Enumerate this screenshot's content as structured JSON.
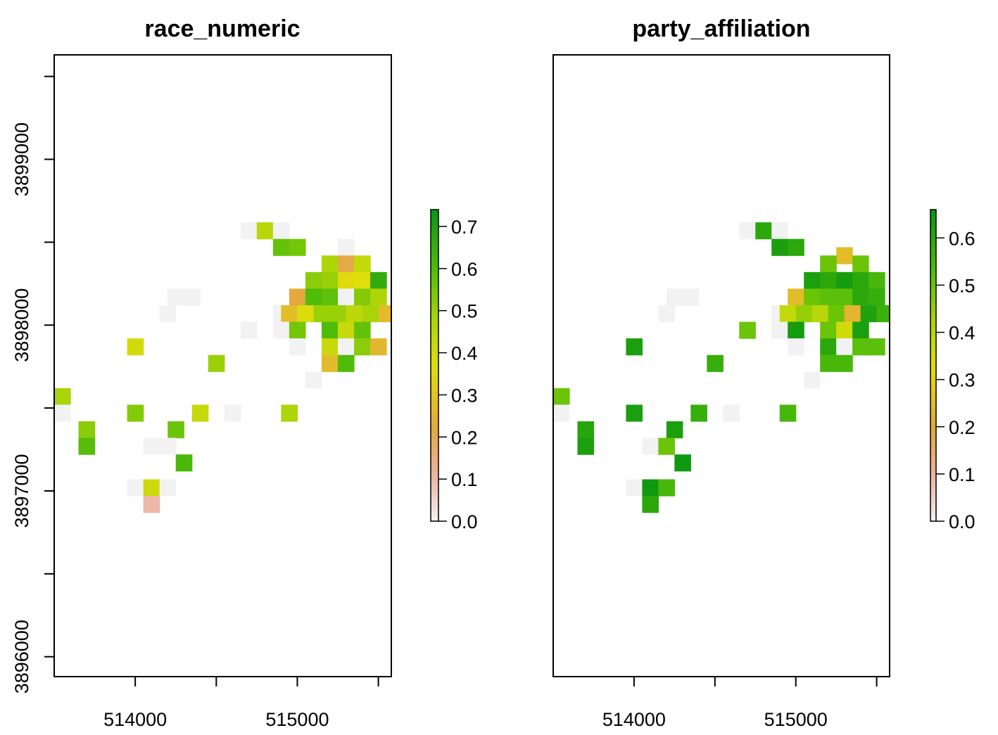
{
  "panels": [
    {
      "title": "race_numeric",
      "xaxis": {
        "ticks": [
          514000,
          515000
        ],
        "minor": [
          514500,
          515500
        ],
        "range": [
          513500,
          515580
        ]
      },
      "yaxis": {
        "labels": [
          "3896000",
          "3897000",
          "3898000",
          "3899000"
        ],
        "ticks": [
          3896000,
          3896500,
          3897000,
          3897500,
          3898000,
          3898500,
          3899000,
          3899500
        ],
        "range": [
          3895880,
          3899630
        ]
      },
      "legend": {
        "labels": [
          "0.0",
          "0.1",
          "0.2",
          "0.3",
          "0.4",
          "0.5",
          "0.6",
          "0.7"
        ],
        "range": [
          0,
          0.74
        ]
      },
      "cells": [
        [
          514700,
          3898570,
          0.0
        ],
        [
          514800,
          3898570,
          0.45
        ],
        [
          514900,
          3898570,
          0.0
        ],
        [
          514900,
          3898470,
          0.57
        ],
        [
          515000,
          3898470,
          0.55
        ],
        [
          515300,
          3898470,
          0.0
        ],
        [
          515200,
          3898370,
          0.47
        ],
        [
          515300,
          3898370,
          0.21
        ],
        [
          515400,
          3898370,
          0.43
        ],
        [
          515100,
          3898270,
          0.52
        ],
        [
          515200,
          3898270,
          0.5
        ],
        [
          515300,
          3898270,
          0.36
        ],
        [
          515400,
          3898270,
          0.37
        ],
        [
          515500,
          3898270,
          0.66
        ],
        [
          514250,
          3898170,
          0.0
        ],
        [
          514350,
          3898170,
          0.0
        ],
        [
          515000,
          3898170,
          0.22
        ],
        [
          515100,
          3898170,
          0.6
        ],
        [
          515200,
          3898170,
          0.58
        ],
        [
          515300,
          3898170,
          0.0
        ],
        [
          515400,
          3898170,
          0.53
        ],
        [
          515500,
          3898170,
          0.47
        ],
        [
          514200,
          3898070,
          0.0
        ],
        [
          514900,
          3898070,
          0.0
        ],
        [
          514950,
          3898070,
          0.28
        ],
        [
          515050,
          3898070,
          0.38
        ],
        [
          515150,
          3898070,
          0.5
        ],
        [
          515250,
          3898070,
          0.5
        ],
        [
          515350,
          3898070,
          0.44
        ],
        [
          515450,
          3898070,
          0.48
        ],
        [
          515550,
          3898070,
          0.27
        ],
        [
          514700,
          3897970,
          0.0
        ],
        [
          514900,
          3897970,
          0.0
        ],
        [
          515000,
          3897970,
          0.55
        ],
        [
          515200,
          3897970,
          0.6
        ],
        [
          515300,
          3897970,
          0.42
        ],
        [
          515400,
          3897970,
          0.57
        ],
        [
          514000,
          3897870,
          0.4
        ],
        [
          515000,
          3897870,
          0.0
        ],
        [
          515200,
          3897870,
          0.42
        ],
        [
          515300,
          3897870,
          0.0
        ],
        [
          515400,
          3897870,
          0.52
        ],
        [
          515500,
          3897870,
          0.26
        ],
        [
          514500,
          3897770,
          0.5
        ],
        [
          515200,
          3897770,
          0.27
        ],
        [
          515300,
          3897770,
          0.6
        ],
        [
          515100,
          3897670,
          0.0
        ],
        [
          513550,
          3897570,
          0.48
        ],
        [
          513550,
          3897470,
          0.0
        ],
        [
          514000,
          3897470,
          0.53
        ],
        [
          514400,
          3897470,
          0.42
        ],
        [
          514600,
          3897470,
          0.0
        ],
        [
          514950,
          3897470,
          0.47
        ],
        [
          513700,
          3897370,
          0.52
        ],
        [
          514250,
          3897370,
          0.56
        ],
        [
          513700,
          3897270,
          0.59
        ],
        [
          514100,
          3897270,
          0.0
        ],
        [
          514200,
          3897270,
          0.0
        ],
        [
          514300,
          3897170,
          0.61
        ],
        [
          514000,
          3897020,
          0.0
        ],
        [
          514100,
          3897020,
          0.41
        ],
        [
          514200,
          3897020,
          0.0
        ],
        [
          514100,
          3896920,
          0.1
        ]
      ]
    },
    {
      "title": "party_affiliation",
      "xaxis": {
        "ticks": [
          514000,
          515000
        ],
        "minor": [
          514500,
          515500
        ],
        "range": [
          513500,
          515580
        ]
      },
      "yaxis": {
        "labels": [],
        "ticks": [],
        "range": [
          3895880,
          3899630
        ]
      },
      "legend": {
        "labels": [
          "0.0",
          "0.1",
          "0.2",
          "0.3",
          "0.4",
          "0.5",
          "0.6"
        ],
        "range": [
          0,
          0.66
        ]
      },
      "cells": [
        [
          514700,
          3898570,
          0.0
        ],
        [
          514800,
          3898570,
          0.6
        ],
        [
          514900,
          3898570,
          0.0
        ],
        [
          514900,
          3898470,
          0.63
        ],
        [
          515000,
          3898470,
          0.6
        ],
        [
          515300,
          3898420,
          0.25
        ],
        [
          515200,
          3898370,
          0.5
        ],
        [
          515400,
          3898370,
          0.5
        ],
        [
          515100,
          3898270,
          0.63
        ],
        [
          515200,
          3898270,
          0.6
        ],
        [
          515300,
          3898270,
          0.64
        ],
        [
          515400,
          3898270,
          0.6
        ],
        [
          515500,
          3898270,
          0.55
        ],
        [
          514250,
          3898170,
          0.0
        ],
        [
          514350,
          3898170,
          0.0
        ],
        [
          515000,
          3898170,
          0.25
        ],
        [
          515100,
          3898170,
          0.5
        ],
        [
          515200,
          3898170,
          0.52
        ],
        [
          515300,
          3898170,
          0.52
        ],
        [
          515400,
          3898170,
          0.6
        ],
        [
          515500,
          3898170,
          0.58
        ],
        [
          514200,
          3898070,
          0.0
        ],
        [
          514900,
          3898070,
          0.0
        ],
        [
          514950,
          3898070,
          0.38
        ],
        [
          515050,
          3898070,
          0.45
        ],
        [
          515150,
          3898070,
          0.4
        ],
        [
          515250,
          3898070,
          0.5
        ],
        [
          515350,
          3898070,
          0.23
        ],
        [
          515450,
          3898070,
          0.62
        ],
        [
          515550,
          3898070,
          0.57
        ],
        [
          514700,
          3897970,
          0.5
        ],
        [
          514900,
          3897970,
          0.0
        ],
        [
          515000,
          3897970,
          0.64
        ],
        [
          515200,
          3897970,
          0.5
        ],
        [
          515300,
          3897970,
          0.36
        ],
        [
          515400,
          3897970,
          0.63
        ],
        [
          514000,
          3897870,
          0.63
        ],
        [
          515000,
          3897870,
          0.0
        ],
        [
          515200,
          3897870,
          0.6
        ],
        [
          515300,
          3897870,
          0.0
        ],
        [
          515400,
          3897870,
          0.52
        ],
        [
          515500,
          3897870,
          0.52
        ],
        [
          514500,
          3897770,
          0.58
        ],
        [
          515200,
          3897770,
          0.55
        ],
        [
          515300,
          3897770,
          0.55
        ],
        [
          515100,
          3897670,
          0.0
        ],
        [
          513550,
          3897570,
          0.5
        ],
        [
          513550,
          3897470,
          0.0
        ],
        [
          514000,
          3897470,
          0.63
        ],
        [
          514400,
          3897470,
          0.58
        ],
        [
          514600,
          3897470,
          0.0
        ],
        [
          514950,
          3897470,
          0.55
        ],
        [
          513700,
          3897370,
          0.61
        ],
        [
          514250,
          3897370,
          0.63
        ],
        [
          513700,
          3897270,
          0.63
        ],
        [
          514100,
          3897270,
          0.0
        ],
        [
          514200,
          3897270,
          0.5
        ],
        [
          514300,
          3897170,
          0.65
        ],
        [
          514000,
          3897020,
          0.0
        ],
        [
          514100,
          3897020,
          0.65
        ],
        [
          514200,
          3897020,
          0.55
        ],
        [
          514100,
          3896920,
          0.6
        ]
      ]
    }
  ],
  "chart_data": [
    {
      "type": "heatmap",
      "title": "race_numeric",
      "xlabel": "",
      "ylabel": "",
      "xlim": [
        513500,
        515580
      ],
      "ylim": [
        3895880,
        3899630
      ],
      "x_tick_labels": [
        "514000",
        "515000"
      ],
      "y_tick_labels": [
        "3896000",
        "3897000",
        "3898000",
        "3899000"
      ],
      "colorbar": {
        "min": 0,
        "max": 0.74,
        "tick_labels": [
          "0.0",
          "0.1",
          "0.2",
          "0.3",
          "0.4",
          "0.5",
          "0.6",
          "0.7"
        ],
        "palette": "terrain (white-to-green)"
      },
      "cell_size": 100,
      "note_cells": "cells listed as [x, y, value] in panels[0].cells"
    },
    {
      "type": "heatmap",
      "title": "party_affiliation",
      "xlabel": "",
      "ylabel": "",
      "xlim": [
        513500,
        515580
      ],
      "ylim": [
        3895880,
        3899630
      ],
      "x_tick_labels": [
        "514000",
        "515000"
      ],
      "colorbar": {
        "min": 0,
        "max": 0.66,
        "tick_labels": [
          "0.0",
          "0.1",
          "0.2",
          "0.3",
          "0.4",
          "0.5",
          "0.6"
        ],
        "palette": "terrain (white-to-green)"
      },
      "cell_size": 100,
      "note_cells": "cells listed as [x, y, value] in panels[1].cells"
    }
  ]
}
